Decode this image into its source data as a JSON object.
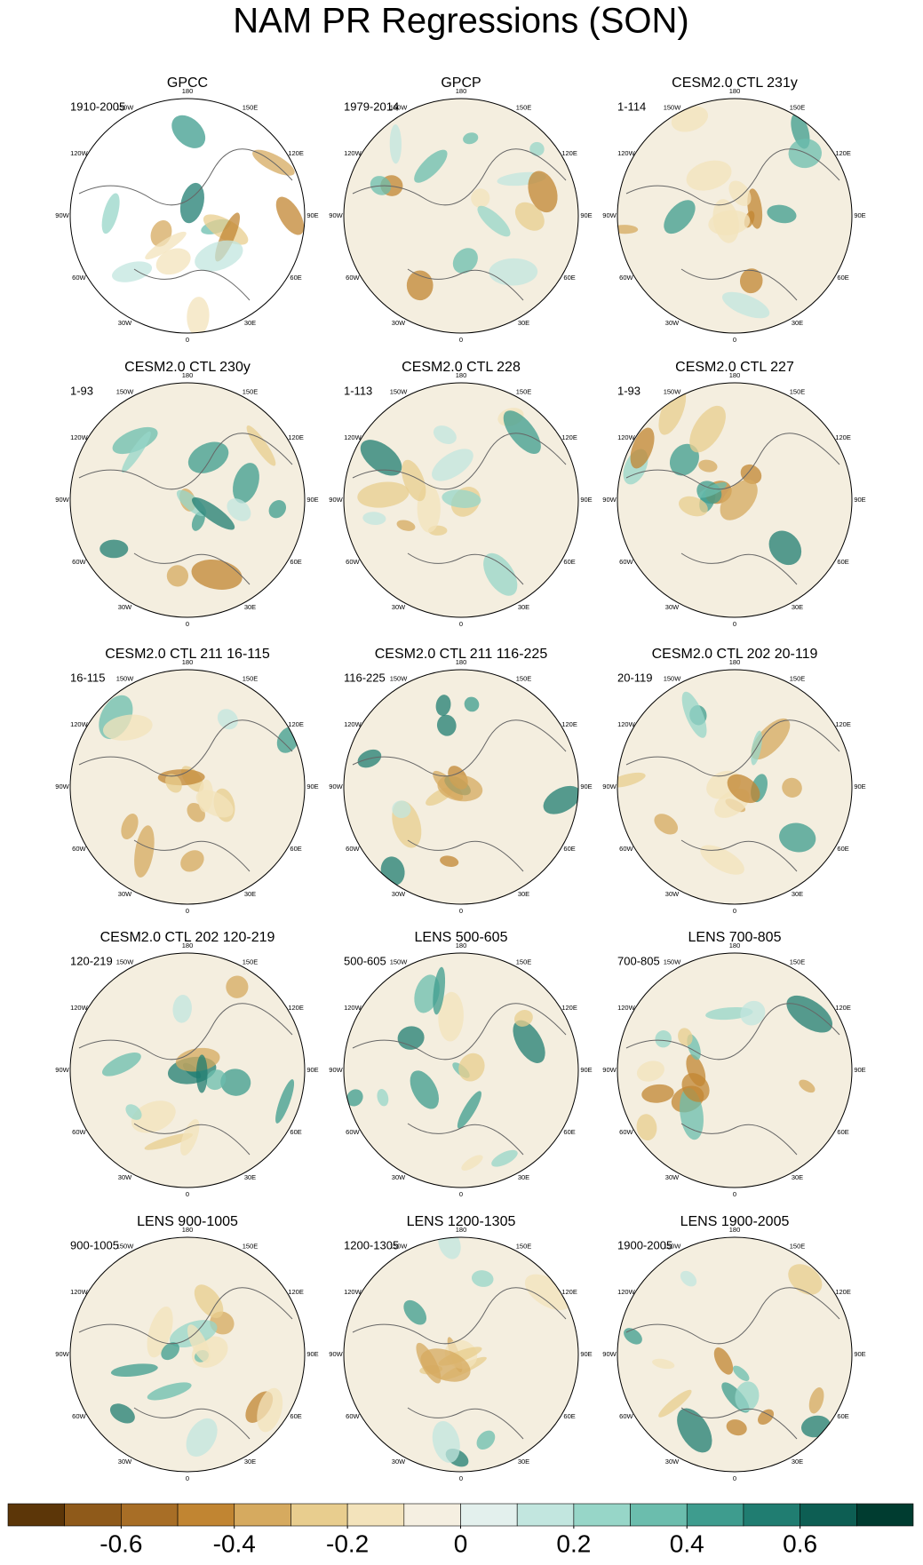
{
  "title": "NAM PR Regressions (SON)",
  "lon_labels": [
    "0",
    "30E",
    "60E",
    "90E",
    "120E",
    "150E",
    "180",
    "150W",
    "120W",
    "90W",
    "60W",
    "30W"
  ],
  "panels": [
    {
      "title": "GPCC",
      "period": "1910-2005"
    },
    {
      "title": "GPCP",
      "period": "1979-2014"
    },
    {
      "title": "CESM2.0 CTL 231y",
      "period": "1-114"
    },
    {
      "title": "CESM2.0 CTL 230y",
      "period": "1-93"
    },
    {
      "title": "CESM2.0 CTL 228",
      "period": "1-113"
    },
    {
      "title": "CESM2.0 CTL 227",
      "period": "1-93"
    },
    {
      "title": "CESM2.0 CTL 211 16-115",
      "period": "16-115"
    },
    {
      "title": "CESM2.0 CTL 211 116-225",
      "period": "116-225"
    },
    {
      "title": "CESM2.0 CTL 202 20-119",
      "period": "20-119"
    },
    {
      "title": "CESM2.0 CTL 202 120-219",
      "period": "120-219"
    },
    {
      "title": "LENS 500-605",
      "period": "500-605"
    },
    {
      "title": "LENS 700-805",
      "period": "700-805"
    },
    {
      "title": "LENS 900-1005",
      "period": "900-1005"
    },
    {
      "title": "LENS 1200-1305",
      "period": "1200-1305"
    },
    {
      "title": "LENS 1900-2005",
      "period": "1900-2005"
    }
  ],
  "colorbar": {
    "lim": [
      -0.8,
      0.8
    ],
    "colors": [
      "#5c3608",
      "#8f5a1a",
      "#a86e26",
      "#c18532",
      "#d6aa5f",
      "#e8cd8e",
      "#f3e3bb",
      "#f5efe1",
      "#e3f0ed",
      "#c2e6df",
      "#97d6c8",
      "#6bbdad",
      "#3e9c8e",
      "#207d71",
      "#0d5e53",
      "#003c30"
    ],
    "ticks": [
      -0.6,
      -0.4,
      -0.2,
      0,
      0.2,
      0.4,
      0.6
    ]
  }
}
